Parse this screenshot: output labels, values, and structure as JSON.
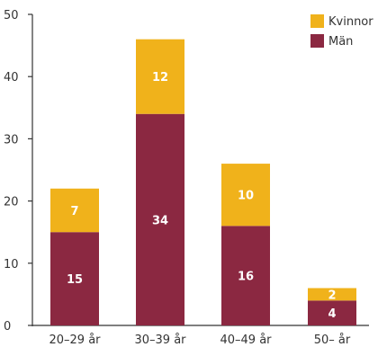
{
  "chart_data": {
    "type": "bar",
    "stacked": true,
    "categories": [
      "20–29 år",
      "30–39 år",
      "40–49 år",
      "50– år"
    ],
    "series": [
      {
        "name": "Män",
        "values": [
          15,
          34,
          16,
          4
        ],
        "color": "#8b2841"
      },
      {
        "name": "Kvinnor",
        "values": [
          7,
          12,
          10,
          2
        ],
        "color": "#f0b21b"
      }
    ],
    "ylim": [
      0,
      50
    ],
    "yticks": [
      0,
      10,
      20,
      30,
      40,
      50
    ],
    "grid": false,
    "legend": "top-right",
    "legend_order": [
      "Kvinnor",
      "Män"
    ]
  }
}
